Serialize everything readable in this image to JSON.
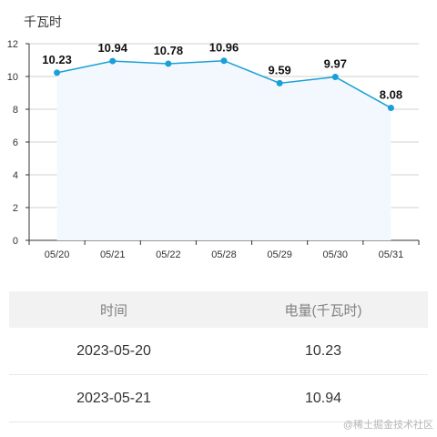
{
  "unit_label": "千瓦时",
  "chart_data": {
    "type": "line",
    "categories": [
      "05/20",
      "05/21",
      "05/22",
      "05/28",
      "05/29",
      "05/30",
      "05/31"
    ],
    "values": [
      10.23,
      10.94,
      10.78,
      10.96,
      9.59,
      9.97,
      8.08
    ],
    "data_labels": [
      "10.23",
      "10.94",
      "10.78",
      "10.96",
      "9.59",
      "9.97",
      "8.08"
    ],
    "y_ticks": [
      "0",
      "2",
      "4",
      "6",
      "8",
      "10",
      "12"
    ],
    "ylim": [
      0,
      12
    ],
    "grid": true,
    "area_fill": true,
    "line_color": "#1aa0d8",
    "fill_color": "#f2f8fe"
  },
  "table": {
    "headers": [
      "时间",
      "电量(千瓦时)"
    ],
    "rows": [
      {
        "date": "2023-05-20",
        "value": "10.23"
      },
      {
        "date": "2023-05-21",
        "value": "10.94"
      }
    ]
  },
  "watermark": "@稀土掘金技术社区"
}
